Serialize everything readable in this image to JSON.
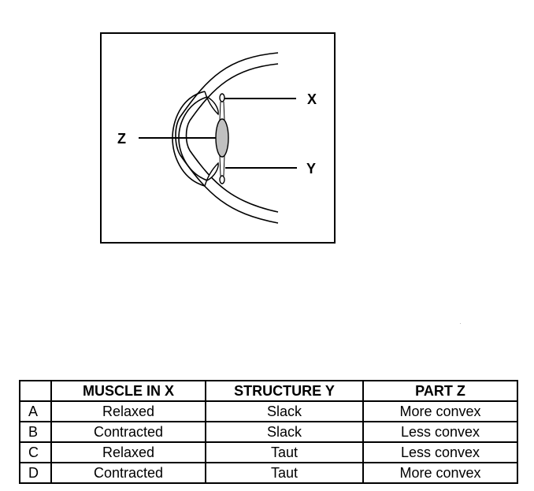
{
  "diagram": {
    "labels": {
      "x": "X",
      "y": "Y",
      "z": "Z"
    }
  },
  "table": {
    "headers": [
      "",
      "MUSCLE IN X",
      "STRUCTURE Y",
      "PART Z"
    ],
    "rows": [
      {
        "option": "A",
        "muscle": "Relaxed",
        "structure": "Slack",
        "part": "More convex"
      },
      {
        "option": "B",
        "muscle": "Contracted",
        "structure": "Slack",
        "part": "Less convex"
      },
      {
        "option": "C",
        "muscle": "Relaxed",
        "structure": "Taut",
        "part": "Less convex"
      },
      {
        "option": "D",
        "muscle": "Contracted",
        "structure": "Taut",
        "part": "More convex"
      }
    ]
  }
}
